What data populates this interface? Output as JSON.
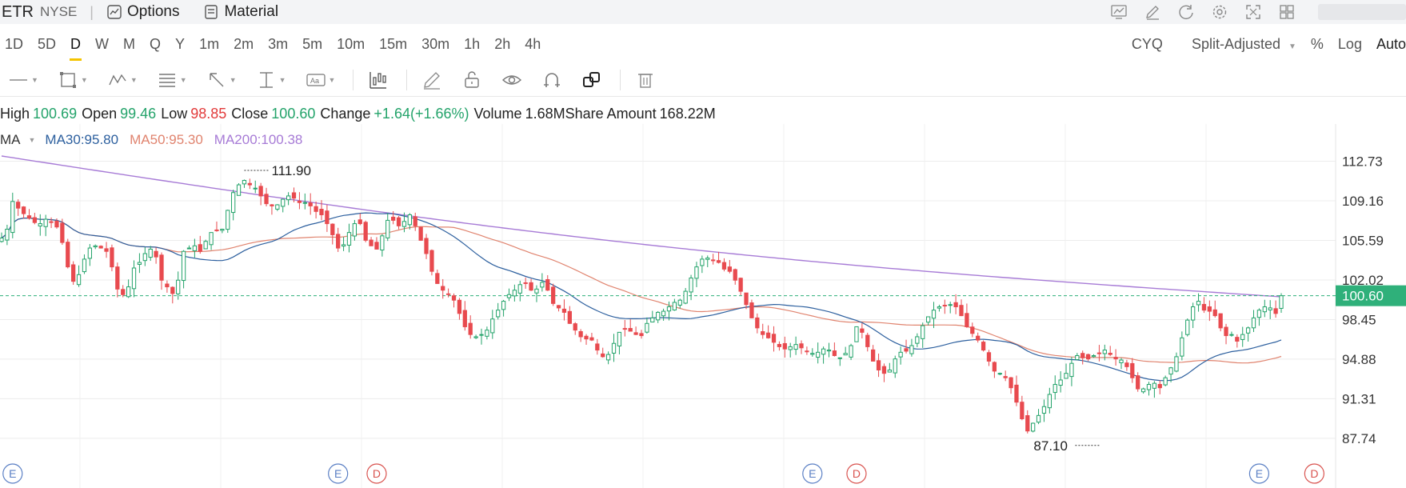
{
  "header": {
    "symbol": "ETR",
    "exchange": "NYSE",
    "options_label": "Options",
    "material_label": "Material",
    "separator": "|",
    "icons": [
      "chart-template-icon",
      "draw-icon",
      "refresh-icon",
      "settings-icon",
      "fullscreen-icon",
      "layout-grid-icon"
    ]
  },
  "periods": {
    "items": [
      "1D",
      "5D",
      "D",
      "W",
      "M",
      "Q",
      "Y",
      "1m",
      "2m",
      "3m",
      "5m",
      "10m",
      "15m",
      "30m",
      "1h",
      "2h",
      "4h"
    ],
    "active": "D",
    "right": {
      "cyq": "CYQ",
      "adjust": "Split-Adjusted",
      "percent": "%",
      "log": "Log",
      "auto": "Auto"
    }
  },
  "tools": [
    "line-tool-icon",
    "rectangle-tool-icon",
    "pattern-tool-icon",
    "fib-tool-icon",
    "arrow-tool-icon",
    "measure-tool-icon",
    "text-tool-icon",
    "indicator-tool-icon",
    "pencil-icon",
    "lock-icon",
    "eye-icon",
    "magnet-icon",
    "copy-icon",
    "trash-icon"
  ],
  "ohlc": {
    "high_label": "High",
    "high": "100.69",
    "open_label": "Open",
    "open": "99.46",
    "low_label": "Low",
    "low": "98.85",
    "close_label": "Close",
    "close": "100.60",
    "change_label": "Change",
    "change": "+1.64(+1.66%)",
    "volume_label": "Volume",
    "volume": "1.68M",
    "amount_label": "Share Amount",
    "amount": "168.22M"
  },
  "ma": {
    "label": "MA",
    "ma30": "MA30:95.80",
    "ma50": "MA50:95.30",
    "ma200": "MA200:100.38"
  },
  "colors": {
    "up": "#23a36a",
    "down": "#e84a4f",
    "ma30": "#2c5f9e",
    "ma50": "#e0836e",
    "ma200": "#a77bd6",
    "price_line": "#2fb07a",
    "grid": "#ececec"
  },
  "chart_data": {
    "type": "candlestick",
    "y_ticks": [
      112.73,
      109.16,
      105.59,
      102.02,
      98.45,
      94.88,
      91.31,
      87.74
    ],
    "ylim": [
      86.0,
      114.5
    ],
    "last_price": "100.60",
    "high_marker": {
      "label": "111.90",
      "value": 111.9,
      "index": 44
    },
    "low_marker": {
      "label": "87.10",
      "value": 87.1,
      "index": 199
    },
    "event_markers": [
      {
        "label": "E",
        "index": 2
      },
      {
        "label": "E",
        "index": 61
      },
      {
        "label": "D",
        "index": 68
      },
      {
        "label": "E",
        "index": 147
      },
      {
        "label": "D",
        "index": 155
      },
      {
        "label": "E",
        "index": 228
      },
      {
        "label": "D",
        "index": 238
      }
    ],
    "closes": [
      105.8,
      106.6,
      109.1,
      108.5,
      108.0,
      107.6,
      107.2,
      107.1,
      107.5,
      107.2,
      106.8,
      105.4,
      103.2,
      101.9,
      102.5,
      103.9,
      104.9,
      105.1,
      104.9,
      104.6,
      103.2,
      101.2,
      100.7,
      101.4,
      103.1,
      103.6,
      104.4,
      104.8,
      104.1,
      102.0,
      101.4,
      100.8,
      102.0,
      104.6,
      104.9,
      105.1,
      104.6,
      105.5,
      106.3,
      106.5,
      106.6,
      108.3,
      109.9,
      110.6,
      111.0,
      110.6,
      110.3,
      109.6,
      108.9,
      108.7,
      108.8,
      109.3,
      109.6,
      109.4,
      109.0,
      109.0,
      108.7,
      108.2,
      107.9,
      107.1,
      106.1,
      104.9,
      105.2,
      106.3,
      107.1,
      107.1,
      105.6,
      105.1,
      104.8,
      106.0,
      107.4,
      107.4,
      106.9,
      107.3,
      107.9,
      106.9,
      105.6,
      104.4,
      102.8,
      101.7,
      101.1,
      100.7,
      100.2,
      99.0,
      97.8,
      97.1,
      96.9,
      97.1,
      97.5,
      98.5,
      99.3,
      100.1,
      100.7,
      101.1,
      101.6,
      101.7,
      101.1,
      101.2,
      101.8,
      101.1,
      99.9,
      99.5,
      99.1,
      98.1,
      97.5,
      96.9,
      96.7,
      96.6,
      95.7,
      95.1,
      95.3,
      96.3,
      97.3,
      97.6,
      97.4,
      97.1,
      97.0,
      98.1,
      98.6,
      99.1,
      99.2,
      99.6,
      100.0,
      100.2,
      101.0,
      102.2,
      103.2,
      103.9,
      104.0,
      103.8,
      103.6,
      103.0,
      102.8,
      102.0,
      101.0,
      99.8,
      98.6,
      97.7,
      97.1,
      96.8,
      96.4,
      96.0,
      95.8,
      96.0,
      96.2,
      95.9,
      95.6,
      95.4,
      95.5,
      95.8,
      95.7,
      95.2,
      95.0,
      95.4,
      96.1,
      97.8,
      97.3,
      96.0,
      94.7,
      93.9,
      93.6,
      93.9,
      94.9,
      95.5,
      95.6,
      96.1,
      96.9,
      97.9,
      98.7,
      99.3,
      99.6,
      99.7,
      99.8,
      99.6,
      98.8,
      97.8,
      97.2,
      96.6,
      95.7,
      94.7,
      93.8,
      93.6,
      93.2,
      92.3,
      91.0,
      89.5,
      88.4,
      89.1,
      89.8,
      90.6,
      91.7,
      92.6,
      93.0,
      93.6,
      94.5,
      95.2,
      95.0,
      94.9,
      95.2,
      95.4,
      95.7,
      95.3,
      94.9,
      94.8,
      94.2,
      93.2,
      92.2,
      92.2,
      92.6,
      92.7,
      92.3,
      93.2,
      94.1,
      95.1,
      96.8,
      98.4,
      99.6,
      100.1,
      99.3,
      99.2,
      98.8,
      97.7,
      97.0,
      97.1,
      96.5,
      97.1,
      97.7,
      98.6,
      99.3,
      99.6,
      99.5,
      99.0,
      100.6
    ]
  }
}
